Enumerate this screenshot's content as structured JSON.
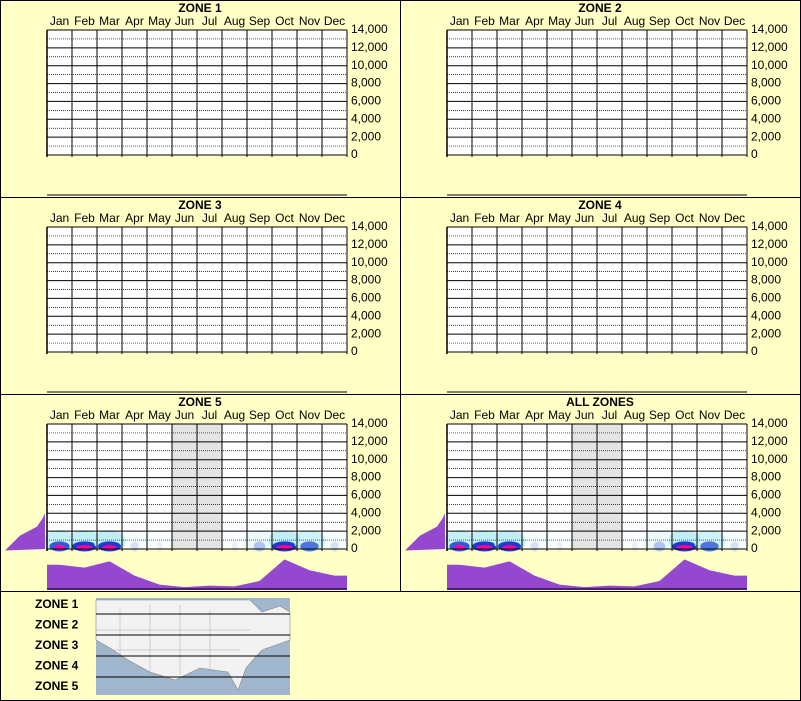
{
  "chart_data": [
    {
      "type": "heatmap",
      "title": "ZONE 1",
      "categories": [
        "Jan",
        "Feb",
        "Mar",
        "Apr",
        "May",
        "Jun",
        "Jul",
        "Aug",
        "Sep",
        "Oct",
        "Nov",
        "Dec"
      ],
      "ylim": [
        0,
        14000
      ],
      "yticks": [
        0,
        {
          "value": 2000,
          "label": "2,000"
        },
        {
          "value": 4000,
          "label": "4,000"
        },
        {
          "value": 6000,
          "label": "6,000"
        },
        {
          "value": 8000,
          "label": "8,000"
        },
        {
          "value": 10000,
          "label": "10,000"
        },
        {
          "value": 12000,
          "label": "12,000"
        },
        {
          "value": 14000,
          "label": "14,000"
        }
      ]
    },
    {
      "type": "heatmap",
      "title": "ZONE 2",
      "categories": [
        "Jan",
        "Feb",
        "Mar",
        "Apr",
        "May",
        "Jun",
        "Jul",
        "Aug",
        "Sep",
        "Oct",
        "Nov",
        "Dec"
      ],
      "ylim": [
        0,
        14000
      ],
      "yticks": [
        0,
        {
          "value": 2000,
          "label": "2,000"
        },
        {
          "value": 4000,
          "label": "4,000"
        },
        {
          "value": 6000,
          "label": "6,000"
        },
        {
          "value": 8000,
          "label": "8,000"
        },
        {
          "value": 10000,
          "label": "10,000"
        },
        {
          "value": 12000,
          "label": "12,000"
        },
        {
          "value": 14000,
          "label": "14,000"
        }
      ]
    },
    {
      "type": "heatmap",
      "title": "ZONE 3",
      "categories": [
        "Jan",
        "Feb",
        "Mar",
        "Apr",
        "May",
        "Jun",
        "Jul",
        "Aug",
        "Sep",
        "Oct",
        "Nov",
        "Dec"
      ],
      "ylim": [
        0,
        14000
      ],
      "yticks": [
        0,
        {
          "value": 2000,
          "label": "2,000"
        },
        {
          "value": 4000,
          "label": "4,000"
        },
        {
          "value": 6000,
          "label": "6,000"
        },
        {
          "value": 8000,
          "label": "8,000"
        },
        {
          "value": 10000,
          "label": "10,000"
        },
        {
          "value": 12000,
          "label": "12,000"
        },
        {
          "value": 14000,
          "label": "14,000"
        }
      ]
    },
    {
      "type": "heatmap",
      "title": "ZONE 4",
      "categories": [
        "Jan",
        "Feb",
        "Mar",
        "Apr",
        "May",
        "Jun",
        "Jul",
        "Aug",
        "Sep",
        "Oct",
        "Nov",
        "Dec"
      ],
      "ylim": [
        0,
        14000
      ],
      "yticks": [
        0,
        {
          "value": 2000,
          "label": "2,000"
        },
        {
          "value": 4000,
          "label": "4,000"
        },
        {
          "value": 6000,
          "label": "6,000"
        },
        {
          "value": 8000,
          "label": "8,000"
        },
        {
          "value": 10000,
          "label": "10,000"
        },
        {
          "value": 12000,
          "label": "12,000"
        },
        {
          "value": 14000,
          "label": "14,000"
        }
      ]
    },
    {
      "type": "heatmap",
      "title": "ZONE 5",
      "categories": [
        "Jan",
        "Feb",
        "Mar",
        "Apr",
        "May",
        "Jun",
        "Jul",
        "Aug",
        "Sep",
        "Oct",
        "Nov",
        "Dec"
      ],
      "ylim": [
        0,
        14000
      ],
      "yticks": [
        0,
        {
          "value": 2000,
          "label": "2,000"
        },
        {
          "value": 4000,
          "label": "4,000"
        },
        {
          "value": 6000,
          "label": "6,000"
        },
        {
          "value": 8000,
          "label": "8,000"
        },
        {
          "value": 10000,
          "label": "10,000"
        },
        {
          "value": 12000,
          "label": "12,000"
        },
        {
          "value": 14000,
          "label": "14,000"
        }
      ],
      "shaded_months": [
        5,
        6
      ],
      "low_density": [
        60,
        90,
        80,
        10,
        5,
        null,
        null,
        5,
        20,
        90,
        50,
        10
      ],
      "profile": [
        70,
        62,
        80,
        40,
        15,
        8,
        12,
        10,
        25,
        85,
        55,
        40
      ],
      "profile_lim": [
        0,
        100
      ],
      "elevation_density": [
        40,
        25,
        8,
        2
      ]
    },
    {
      "type": "heatmap",
      "title": "ALL ZONES",
      "categories": [
        "Jan",
        "Feb",
        "Mar",
        "Apr",
        "May",
        "Jun",
        "Jul",
        "Aug",
        "Sep",
        "Oct",
        "Nov",
        "Dec"
      ],
      "ylim": [
        0,
        14000
      ],
      "yticks": [
        0,
        {
          "value": 2000,
          "label": "2,000"
        },
        {
          "value": 4000,
          "label": "4,000"
        },
        {
          "value": 6000,
          "label": "6,000"
        },
        {
          "value": 8000,
          "label": "8,000"
        },
        {
          "value": 10000,
          "label": "10,000"
        },
        {
          "value": 12000,
          "label": "12,000"
        },
        {
          "value": 14000,
          "label": "14,000"
        }
      ],
      "shaded_months": [
        5,
        6
      ],
      "low_density": [
        60,
        90,
        80,
        10,
        5,
        null,
        null,
        5,
        20,
        90,
        50,
        10
      ],
      "profile": [
        70,
        62,
        80,
        40,
        15,
        8,
        12,
        10,
        25,
        85,
        55,
        40
      ],
      "profile_lim": [
        0,
        100
      ],
      "elevation_density": [
        40,
        25,
        8,
        2
      ]
    }
  ],
  "legend": {
    "zones": [
      "ZONE 1",
      "ZONE 2",
      "ZONE 3",
      "ZONE 4",
      "ZONE 5"
    ]
  }
}
